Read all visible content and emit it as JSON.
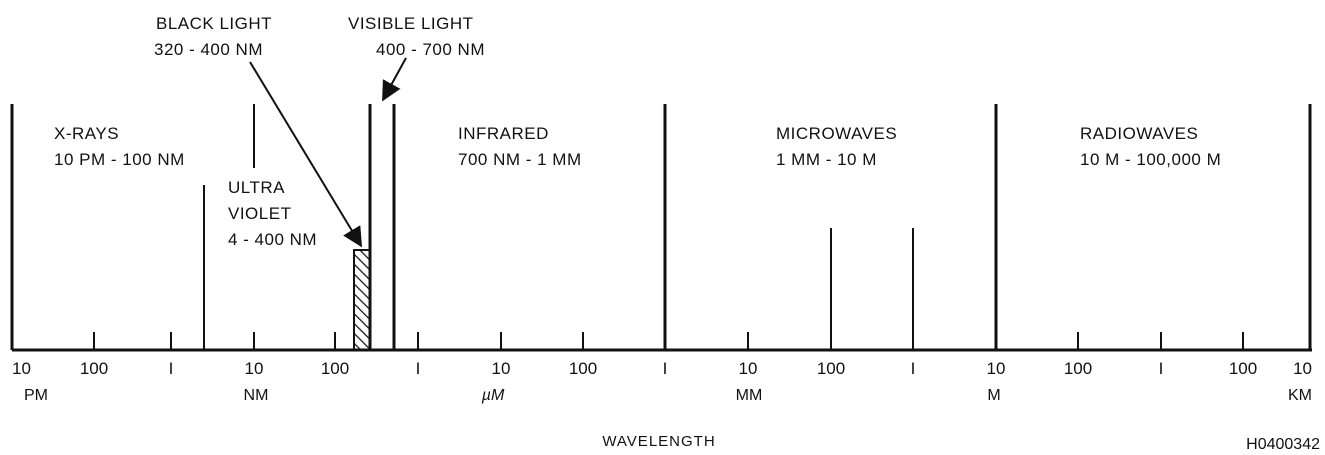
{
  "title_line1": "BLACK LIGHT",
  "title_range": "320 - 400 NM",
  "visible": {
    "name": "VISIBLE LIGHT",
    "range": "400 - 700 NM"
  },
  "bands": {
    "xrays": {
      "name": "X-RAYS",
      "range": "10 PM - 100 NM"
    },
    "ultraviolet": {
      "name1": "ULTRA",
      "name2": "VIOLET",
      "range": "4 - 400 NM"
    },
    "infrared": {
      "name": "INFRARED",
      "range": "700 NM - 1 MM"
    },
    "microwaves": {
      "name": "MICROWAVES",
      "range": "1 MM - 10 M"
    },
    "radiowaves": {
      "name": "RADIOWAVES",
      "range": "10 M - 100,000 M"
    }
  },
  "axis": {
    "tick_labels": [
      "10",
      "100",
      "I",
      "10",
      "100",
      "I",
      "10",
      "100",
      "I",
      "10",
      "100",
      "I",
      "10",
      "100",
      "I",
      "100",
      "10"
    ],
    "unit_labels": [
      "PM",
      "NM",
      "µM",
      "MM",
      "M",
      "KM"
    ],
    "label": "WAVELENGTH"
  },
  "figure_id": "H0400342"
}
